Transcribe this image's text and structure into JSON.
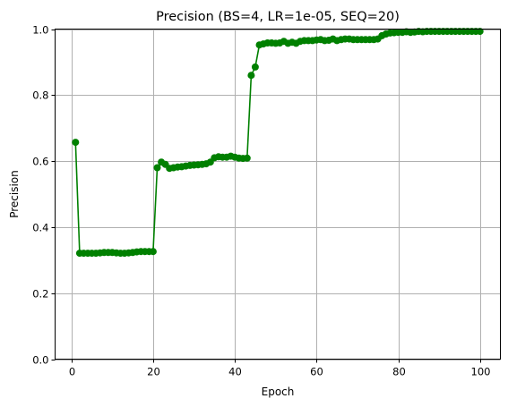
{
  "chart_data": {
    "type": "line",
    "title": "Precision (BS=4, LR=1e-05, SEQ=20)",
    "xlabel": "Epoch",
    "ylabel": "Precision",
    "xlim": [
      -4,
      105
    ],
    "ylim": [
      0,
      1
    ],
    "xticks": [
      0,
      20,
      40,
      60,
      80,
      100
    ],
    "yticks": [
      0.0,
      0.2,
      0.4,
      0.6,
      0.8,
      1.0
    ],
    "xtick_labels": [
      "0",
      "20",
      "40",
      "60",
      "80",
      "100"
    ],
    "ytick_labels": [
      "0.0",
      "0.2",
      "0.4",
      "0.6",
      "0.8",
      "1.0"
    ],
    "grid": true,
    "color": "#008000",
    "marker": "circle",
    "series": [
      {
        "x": [
          1,
          2,
          3,
          4,
          5,
          6,
          7,
          8,
          9,
          10,
          11,
          12,
          13,
          14,
          15,
          16,
          17,
          18,
          19,
          20,
          21,
          22,
          23,
          24,
          25,
          26,
          27,
          28,
          29,
          30,
          31,
          32,
          33,
          34,
          35,
          36,
          37,
          38,
          39,
          40,
          41,
          42,
          43,
          44,
          45,
          46,
          47,
          48,
          49,
          50,
          51,
          52,
          53,
          54,
          55,
          56,
          57,
          58,
          59,
          60,
          61,
          62,
          63,
          64,
          65,
          66,
          67,
          68,
          69,
          70,
          71,
          72,
          73,
          74,
          75,
          76,
          77,
          78,
          79,
          80,
          81,
          82,
          83,
          84,
          85,
          86,
          87,
          88,
          89,
          90,
          91,
          92,
          93,
          94,
          95,
          96,
          97,
          98,
          99,
          100
        ],
        "values": [
          0.657,
          0.321,
          0.321,
          0.321,
          0.321,
          0.321,
          0.322,
          0.323,
          0.323,
          0.323,
          0.322,
          0.321,
          0.321,
          0.322,
          0.323,
          0.325,
          0.326,
          0.326,
          0.326,
          0.326,
          0.58,
          0.597,
          0.59,
          0.578,
          0.58,
          0.582,
          0.583,
          0.585,
          0.587,
          0.588,
          0.589,
          0.59,
          0.592,
          0.597,
          0.61,
          0.613,
          0.612,
          0.612,
          0.615,
          0.612,
          0.609,
          0.608,
          0.609,
          0.86,
          0.885,
          0.952,
          0.955,
          0.958,
          0.958,
          0.957,
          0.958,
          0.963,
          0.957,
          0.96,
          0.957,
          0.963,
          0.965,
          0.965,
          0.965,
          0.967,
          0.968,
          0.965,
          0.966,
          0.97,
          0.965,
          0.968,
          0.97,
          0.97,
          0.968,
          0.968,
          0.968,
          0.968,
          0.968,
          0.968,
          0.97,
          0.98,
          0.985,
          0.988,
          0.989,
          0.99,
          0.99,
          0.992,
          0.99,
          0.991,
          0.993,
          0.992,
          0.993,
          0.993,
          0.993,
          0.993,
          0.993,
          0.993,
          0.993,
          0.993,
          0.993,
          0.993,
          0.993,
          0.993,
          0.993,
          0.993
        ]
      }
    ]
  }
}
